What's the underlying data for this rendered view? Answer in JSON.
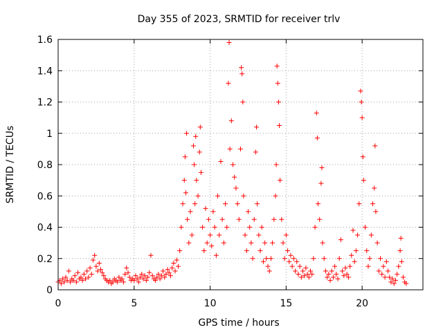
{
  "chart_data": {
    "type": "scatter",
    "title": "Day 355 of 2023, SRMTID for receiver trlv",
    "xlabel": "GPS time / hours",
    "ylabel": "SRMTID / TECUs",
    "xlim": [
      0,
      24
    ],
    "ylim": [
      0,
      1.6
    ],
    "xticks": [
      0,
      5,
      10,
      15,
      20
    ],
    "yticks": [
      0,
      0.2,
      0.4,
      0.6,
      0.8,
      1,
      1.2,
      1.4,
      1.6
    ],
    "xtick_labels": [
      "0",
      "5",
      "10",
      "15",
      "20"
    ],
    "ytick_labels": [
      "0",
      "0.2",
      "0.4",
      "0.6",
      "0.8",
      "1",
      "1.2",
      "1.4",
      "1.6"
    ],
    "grid": true,
    "marker": "+",
    "color": "#ff0000",
    "series": [
      {
        "name": "SRMTID",
        "points": [
          [
            0.0,
            0.05
          ],
          [
            0.1,
            0.06
          ],
          [
            0.2,
            0.04
          ],
          [
            0.3,
            0.07
          ],
          [
            0.4,
            0.05
          ],
          [
            0.5,
            0.08
          ],
          [
            0.6,
            0.06
          ],
          [
            0.7,
            0.12
          ],
          [
            0.8,
            0.05
          ],
          [
            0.9,
            0.07
          ],
          [
            1.0,
            0.06
          ],
          [
            1.1,
            0.09
          ],
          [
            1.2,
            0.05
          ],
          [
            1.3,
            0.11
          ],
          [
            1.4,
            0.07
          ],
          [
            1.5,
            0.08
          ],
          [
            1.6,
            0.06
          ],
          [
            1.7,
            0.1
          ],
          [
            1.8,
            0.07
          ],
          [
            1.9,
            0.12
          ],
          [
            2.0,
            0.08
          ],
          [
            2.1,
            0.14
          ],
          [
            2.2,
            0.1
          ],
          [
            2.3,
            0.19
          ],
          [
            2.4,
            0.22
          ],
          [
            2.5,
            0.15
          ],
          [
            2.6,
            0.12
          ],
          [
            2.7,
            0.17
          ],
          [
            2.8,
            0.13
          ],
          [
            2.9,
            0.11
          ],
          [
            3.0,
            0.09
          ],
          [
            3.1,
            0.07
          ],
          [
            3.2,
            0.06
          ],
          [
            3.3,
            0.05
          ],
          [
            3.4,
            0.06
          ],
          [
            3.5,
            0.04
          ],
          [
            3.6,
            0.05
          ],
          [
            3.7,
            0.07
          ],
          [
            3.8,
            0.06
          ],
          [
            3.9,
            0.05
          ],
          [
            4.0,
            0.08
          ],
          [
            4.1,
            0.06
          ],
          [
            4.2,
            0.07
          ],
          [
            4.3,
            0.05
          ],
          [
            4.4,
            0.1
          ],
          [
            4.5,
            0.14
          ],
          [
            4.6,
            0.11
          ],
          [
            4.7,
            0.08
          ],
          [
            4.8,
            0.06
          ],
          [
            4.9,
            0.07
          ],
          [
            5.0,
            0.06
          ],
          [
            5.1,
            0.09
          ],
          [
            5.2,
            0.07
          ],
          [
            5.3,
            0.05
          ],
          [
            5.4,
            0.08
          ],
          [
            5.5,
            0.1
          ],
          [
            5.6,
            0.07
          ],
          [
            5.7,
            0.09
          ],
          [
            5.8,
            0.06
          ],
          [
            5.9,
            0.08
          ],
          [
            6.0,
            0.11
          ],
          [
            6.1,
            0.22
          ],
          [
            6.2,
            0.09
          ],
          [
            6.3,
            0.07
          ],
          [
            6.4,
            0.06
          ],
          [
            6.5,
            0.08
          ],
          [
            6.6,
            0.1
          ],
          [
            6.7,
            0.07
          ],
          [
            6.8,
            0.09
          ],
          [
            6.9,
            0.12
          ],
          [
            7.0,
            0.08
          ],
          [
            7.1,
            0.1
          ],
          [
            7.2,
            0.13
          ],
          [
            7.3,
            0.11
          ],
          [
            7.4,
            0.09
          ],
          [
            7.5,
            0.14
          ],
          [
            7.6,
            0.17
          ],
          [
            7.7,
            0.12
          ],
          [
            7.8,
            0.19
          ],
          [
            7.9,
            0.15
          ],
          [
            8.0,
            0.25
          ],
          [
            8.1,
            0.4
          ],
          [
            8.2,
            0.55
          ],
          [
            8.3,
            0.7
          ],
          [
            8.35,
            0.85
          ],
          [
            8.4,
            0.62
          ],
          [
            8.45,
            1.0
          ],
          [
            8.5,
            0.45
          ],
          [
            8.6,
            0.3
          ],
          [
            8.7,
            0.5
          ],
          [
            8.8,
            0.35
          ],
          [
            8.9,
            0.92
          ],
          [
            8.95,
            0.8
          ],
          [
            9.0,
            0.55
          ],
          [
            9.05,
            0.98
          ],
          [
            9.1,
            0.7
          ],
          [
            9.2,
            0.6
          ],
          [
            9.3,
            0.88
          ],
          [
            9.35,
            1.04
          ],
          [
            9.4,
            0.75
          ],
          [
            9.5,
            0.4
          ],
          [
            9.6,
            0.25
          ],
          [
            9.7,
            0.52
          ],
          [
            9.8,
            0.3
          ],
          [
            9.9,
            0.45
          ],
          [
            10.0,
            0.35
          ],
          [
            10.1,
            0.28
          ],
          [
            10.2,
            0.5
          ],
          [
            10.3,
            0.4
          ],
          [
            10.4,
            0.22
          ],
          [
            10.5,
            0.6
          ],
          [
            10.6,
            0.35
          ],
          [
            10.7,
            0.82
          ],
          [
            10.8,
            0.45
          ],
          [
            10.9,
            0.3
          ],
          [
            11.0,
            0.55
          ],
          [
            11.1,
            0.4
          ],
          [
            11.2,
            1.32
          ],
          [
            11.25,
            1.58
          ],
          [
            11.3,
            0.9
          ],
          [
            11.4,
            1.08
          ],
          [
            11.5,
            0.8
          ],
          [
            11.6,
            0.72
          ],
          [
            11.7,
            0.65
          ],
          [
            11.8,
            0.55
          ],
          [
            11.9,
            0.45
          ],
          [
            12.0,
            0.9
          ],
          [
            12.05,
            1.42
          ],
          [
            12.1,
            1.38
          ],
          [
            12.15,
            1.2
          ],
          [
            12.2,
            0.6
          ],
          [
            12.3,
            0.35
          ],
          [
            12.4,
            0.25
          ],
          [
            12.5,
            0.5
          ],
          [
            12.6,
            0.4
          ],
          [
            12.7,
            0.3
          ],
          [
            12.8,
            0.2
          ],
          [
            12.9,
            0.45
          ],
          [
            13.0,
            0.88
          ],
          [
            13.05,
            1.04
          ],
          [
            13.1,
            0.55
          ],
          [
            13.2,
            0.35
          ],
          [
            13.3,
            0.25
          ],
          [
            13.4,
            0.4
          ],
          [
            13.5,
            0.18
          ],
          [
            13.6,
            0.3
          ],
          [
            13.7,
            0.2
          ],
          [
            13.8,
            0.15
          ],
          [
            13.9,
            0.12
          ],
          [
            14.0,
            0.2
          ],
          [
            14.1,
            0.3
          ],
          [
            14.2,
            0.45
          ],
          [
            14.3,
            0.6
          ],
          [
            14.35,
            0.8
          ],
          [
            14.4,
            1.43
          ],
          [
            14.45,
            1.32
          ],
          [
            14.5,
            1.2
          ],
          [
            14.55,
            1.05
          ],
          [
            14.6,
            0.7
          ],
          [
            14.7,
            0.45
          ],
          [
            14.8,
            0.3
          ],
          [
            14.9,
            0.2
          ],
          [
            15.0,
            0.35
          ],
          [
            15.1,
            0.25
          ],
          [
            15.2,
            0.18
          ],
          [
            15.3,
            0.22
          ],
          [
            15.4,
            0.15
          ],
          [
            15.5,
            0.2
          ],
          [
            15.6,
            0.12
          ],
          [
            15.7,
            0.18
          ],
          [
            15.8,
            0.1
          ],
          [
            15.9,
            0.15
          ],
          [
            16.0,
            0.08
          ],
          [
            16.1,
            0.12
          ],
          [
            16.2,
            0.09
          ],
          [
            16.3,
            0.14
          ],
          [
            16.4,
            0.1
          ],
          [
            16.5,
            0.08
          ],
          [
            16.6,
            0.12
          ],
          [
            16.7,
            0.1
          ],
          [
            16.8,
            0.2
          ],
          [
            16.9,
            0.4
          ],
          [
            17.0,
            1.13
          ],
          [
            17.05,
            0.97
          ],
          [
            17.1,
            0.55
          ],
          [
            17.2,
            0.45
          ],
          [
            17.3,
            0.68
          ],
          [
            17.35,
            0.78
          ],
          [
            17.4,
            0.3
          ],
          [
            17.5,
            0.2
          ],
          [
            17.6,
            0.12
          ],
          [
            17.7,
            0.08
          ],
          [
            17.8,
            0.1
          ],
          [
            17.9,
            0.06
          ],
          [
            18.0,
            0.12
          ],
          [
            18.1,
            0.08
          ],
          [
            18.2,
            0.15
          ],
          [
            18.3,
            0.1
          ],
          [
            18.4,
            0.07
          ],
          [
            18.5,
            0.2
          ],
          [
            18.6,
            0.32
          ],
          [
            18.7,
            0.12
          ],
          [
            18.8,
            0.09
          ],
          [
            18.9,
            0.14
          ],
          [
            19.0,
            0.1
          ],
          [
            19.1,
            0.08
          ],
          [
            19.2,
            0.15
          ],
          [
            19.3,
            0.22
          ],
          [
            19.4,
            0.38
          ],
          [
            19.5,
            0.18
          ],
          [
            19.6,
            0.25
          ],
          [
            19.7,
            0.35
          ],
          [
            19.8,
            0.55
          ],
          [
            19.9,
            1.27
          ],
          [
            19.95,
            1.2
          ],
          [
            20.0,
            1.1
          ],
          [
            20.05,
            0.85
          ],
          [
            20.1,
            0.7
          ],
          [
            20.2,
            0.4
          ],
          [
            20.3,
            0.25
          ],
          [
            20.4,
            0.15
          ],
          [
            20.5,
            0.2
          ],
          [
            20.6,
            0.35
          ],
          [
            20.7,
            0.55
          ],
          [
            20.8,
            0.65
          ],
          [
            20.85,
            0.92
          ],
          [
            20.9,
            0.5
          ],
          [
            21.0,
            0.3
          ],
          [
            21.1,
            0.12
          ],
          [
            21.2,
            0.2
          ],
          [
            21.3,
            0.1
          ],
          [
            21.4,
            0.15
          ],
          [
            21.5,
            0.08
          ],
          [
            21.6,
            0.18
          ],
          [
            21.7,
            0.12
          ],
          [
            21.8,
            0.08
          ],
          [
            21.9,
            0.05
          ],
          [
            22.0,
            0.07
          ],
          [
            22.1,
            0.04
          ],
          [
            22.2,
            0.06
          ],
          [
            22.3,
            0.1
          ],
          [
            22.4,
            0.15
          ],
          [
            22.5,
            0.25
          ],
          [
            22.55,
            0.33
          ],
          [
            22.6,
            0.18
          ],
          [
            22.7,
            0.08
          ],
          [
            22.8,
            0.05
          ],
          [
            22.9,
            0.04
          ]
        ]
      }
    ]
  }
}
